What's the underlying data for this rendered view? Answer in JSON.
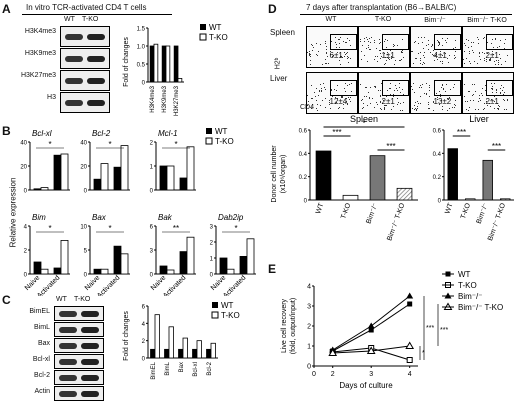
{
  "panelA": {
    "letter": "A",
    "title": "In vitro TCR-activated CD4 T cells",
    "lanes": [
      "WT",
      "T-KO"
    ],
    "blots": [
      "H3K4me3",
      "H3K9me3",
      "H3K27me3",
      "H3"
    ],
    "chart_ylabel": "Fold of changes",
    "legend": [
      "WT",
      "T-KO"
    ],
    "chart_data": {
      "type": "bar",
      "categories": [
        "H3K4me3",
        "H3K9me3",
        "H3K27me3"
      ],
      "series": [
        {
          "name": "WT",
          "values": [
            1,
            1,
            1
          ]
        },
        {
          "name": "T-KO",
          "values": [
            1.05,
            1.0,
            0.1
          ]
        }
      ],
      "ylim": [
        0,
        1.5
      ],
      "yticks": [
        "0",
        "0.5",
        "1.0",
        "1.5"
      ]
    }
  },
  "panelB": {
    "letter": "B",
    "ylabel": "Relative expression",
    "legend": [
      "WT",
      "T-KO"
    ],
    "xcats": [
      "Naive",
      "Activated"
    ],
    "chart_data": [
      {
        "type": "bar",
        "title": "Bcl-xl",
        "ylim": [
          0,
          40
        ],
        "yticks": [
          "0",
          "20",
          "40"
        ],
        "series": [
          {
            "name": "WT",
            "values": [
              1,
              29
            ]
          },
          {
            "name": "T-KO",
            "values": [
              2,
              30
            ]
          }
        ],
        "sig": "*"
      },
      {
        "type": "bar",
        "title": "Bcl-2",
        "ylim": [
          0,
          40
        ],
        "yticks": [
          "0",
          "20",
          "40"
        ],
        "series": [
          {
            "name": "WT",
            "values": [
              9,
              19
            ]
          },
          {
            "name": "T-KO",
            "values": [
              22,
              37
            ]
          }
        ],
        "sig": "*"
      },
      {
        "type": "bar",
        "title": "Mcl-1",
        "ylim": [
          0,
          2
        ],
        "yticks": [
          "0",
          "1",
          "2"
        ],
        "series": [
          {
            "name": "WT",
            "values": [
              1,
              0.5
            ]
          },
          {
            "name": "T-KO",
            "values": [
              1,
              1.8
            ]
          }
        ],
        "sig": "*"
      },
      {
        "type": "bar",
        "title": "Bim",
        "ylim": [
          0,
          4
        ],
        "yticks": [
          "0",
          "2",
          "4"
        ],
        "series": [
          {
            "name": "WT",
            "values": [
              1,
              0.5
            ]
          },
          {
            "name": "T-KO",
            "values": [
              0.4,
              2.8
            ]
          }
        ],
        "sig": "*"
      },
      {
        "type": "bar",
        "title": "Bax",
        "ylim": [
          0,
          10
        ],
        "yticks": [
          "0",
          "5",
          "10"
        ],
        "series": [
          {
            "name": "WT",
            "values": [
              1,
              5.8
            ]
          },
          {
            "name": "T-KO",
            "values": [
              1,
              4.2
            ]
          }
        ],
        "sig": "*"
      },
      {
        "type": "bar",
        "title": "Bak",
        "ylim": [
          0,
          6
        ],
        "yticks": [
          "0",
          "3",
          "6"
        ],
        "series": [
          {
            "name": "WT",
            "values": [
              1,
              2.8
            ]
          },
          {
            "name": "T-KO",
            "values": [
              0.5,
              4.6
            ]
          }
        ],
        "sig": "**"
      },
      {
        "type": "bar",
        "title": "Dab2ip",
        "ylim": [
          0,
          3
        ],
        "yticks": [
          "0",
          "1",
          "2",
          "3"
        ],
        "series": [
          {
            "name": "WT",
            "values": [
              1,
              1.1
            ]
          },
          {
            "name": "T-KO",
            "values": [
              0.3,
              2.2
            ]
          }
        ],
        "sig": "*"
      }
    ]
  },
  "panelC": {
    "letter": "C",
    "lanes": [
      "WT",
      "T-KO"
    ],
    "blots": [
      "BimEL",
      "BimL",
      "Bax",
      "Bcl-xl",
      "Bcl-2",
      "Actin"
    ],
    "chart_ylabel": "Fold of changes",
    "legend": [
      "WT",
      "T-KO"
    ],
    "chart_data": {
      "type": "bar",
      "categories": [
        "BimEL",
        "BimL",
        "Bax",
        "Bcl-xl",
        "Bcl-2"
      ],
      "series": [
        {
          "name": "WT",
          "values": [
            1,
            1,
            1,
            1,
            1
          ]
        },
        {
          "name": "T-KO",
          "values": [
            5.0,
            3.6,
            2.3,
            2.0,
            1.7
          ]
        }
      ],
      "ylim": [
        0,
        6
      ],
      "yticks": [
        "0",
        "2",
        "4",
        "6"
      ]
    }
  },
  "panelD": {
    "letter": "D",
    "title": "7 days after  transplantation (B6→BALB/C)",
    "cols": [
      "WT",
      "T-KO",
      "Bim⁻/⁻",
      "Bim⁻/⁻ T-KO"
    ],
    "rows": [
      "Spleen",
      "Liver"
    ],
    "xaxis": "CD4",
    "yaxis": "H2ᵇ",
    "gates": [
      [
        "6±1",
        "1±1",
        "4±1",
        "2±1"
      ],
      [
        "12±4",
        "2±1",
        "13±2",
        "2±1"
      ]
    ],
    "chart_ylabel": "Donor cell number",
    "chart_yunit": "(x10⁶/organ)",
    "chart_data": [
      {
        "type": "bar",
        "title": "Spleen",
        "categories": [
          "WT",
          "T-KO",
          "Bim⁻/⁻",
          "Bim⁻/⁻ T-KO"
        ],
        "values": [
          0.42,
          0.04,
          0.38,
          0.1
        ],
        "ylim": [
          0,
          0.6
        ],
        "yticks": [
          "0",
          "0.2",
          "0.4",
          "0.6"
        ],
        "sig": [
          "***",
          "*",
          "***"
        ]
      },
      {
        "type": "bar",
        "title": "Liver",
        "categories": [
          "WT",
          "T-KO",
          "Bim⁻/⁻",
          "Bim⁻/⁻ T-KO"
        ],
        "values": [
          0.44,
          0.01,
          0.34,
          0.01
        ],
        "ylim": [
          0,
          0.6
        ],
        "yticks": [
          "0",
          "0.2",
          "0.4",
          "0.6"
        ],
        "sig": [
          "***",
          "***"
        ]
      }
    ]
  },
  "panelE": {
    "letter": "E",
    "ylabel": "Live cell recovery",
    "ylabel2": "(fold, output/input)",
    "xlabel": "Days of culture",
    "legend": [
      "WT",
      "T-KO",
      "Bim⁻/⁻",
      "Bim⁻/⁻ T-KO"
    ],
    "sig": [
      "***",
      "*",
      "***"
    ],
    "chart_data": {
      "type": "line",
      "x": [
        2,
        3,
        4
      ],
      "xticks": [
        "0",
        "2",
        "3",
        "4"
      ],
      "yticks": [
        "0",
        "1",
        "2",
        "3",
        "4"
      ],
      "ylim": [
        0,
        4
      ],
      "series": [
        {
          "name": "WT",
          "values": [
            0.75,
            1.8,
            3.1
          ]
        },
        {
          "name": "T-KO",
          "values": [
            0.7,
            0.9,
            0.3
          ]
        },
        {
          "name": "Bim⁻/⁻",
          "values": [
            0.8,
            2.0,
            3.5
          ]
        },
        {
          "name": "Bim⁻/⁻ T-KO",
          "values": [
            0.65,
            0.75,
            1.0
          ]
        }
      ]
    }
  }
}
